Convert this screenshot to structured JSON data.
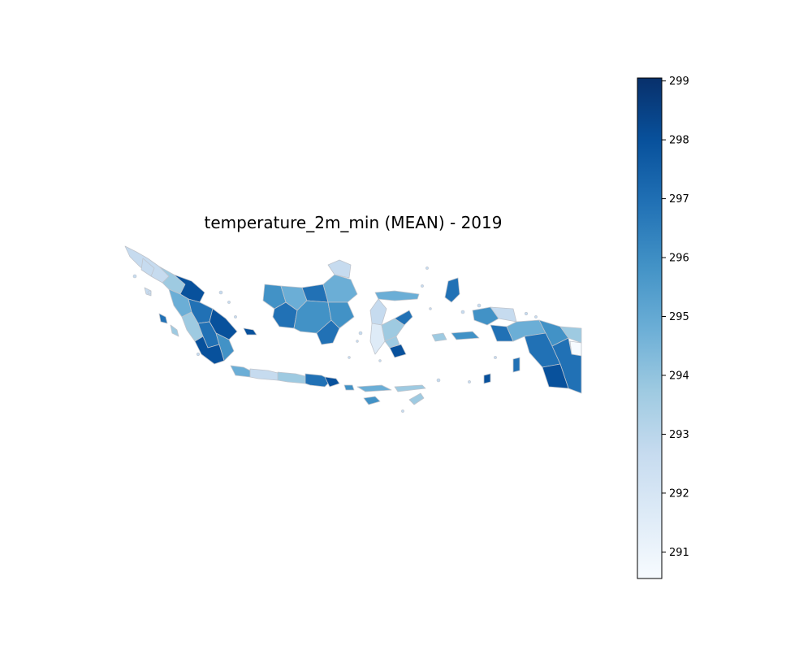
{
  "title": "temperature_2m_min (MEAN) - 2019",
  "colorbar": {
    "min": 290.55,
    "max": 299.05,
    "ticks": [
      291,
      292,
      293,
      294,
      295,
      296,
      297,
      298,
      299
    ],
    "colormap": "Blues",
    "stops": [
      "#f7fbff",
      "#deebf7",
      "#c6dbef",
      "#9ecae1",
      "#6baed6",
      "#4292c6",
      "#2171b5",
      "#08519c",
      "#08306b"
    ]
  }
}
